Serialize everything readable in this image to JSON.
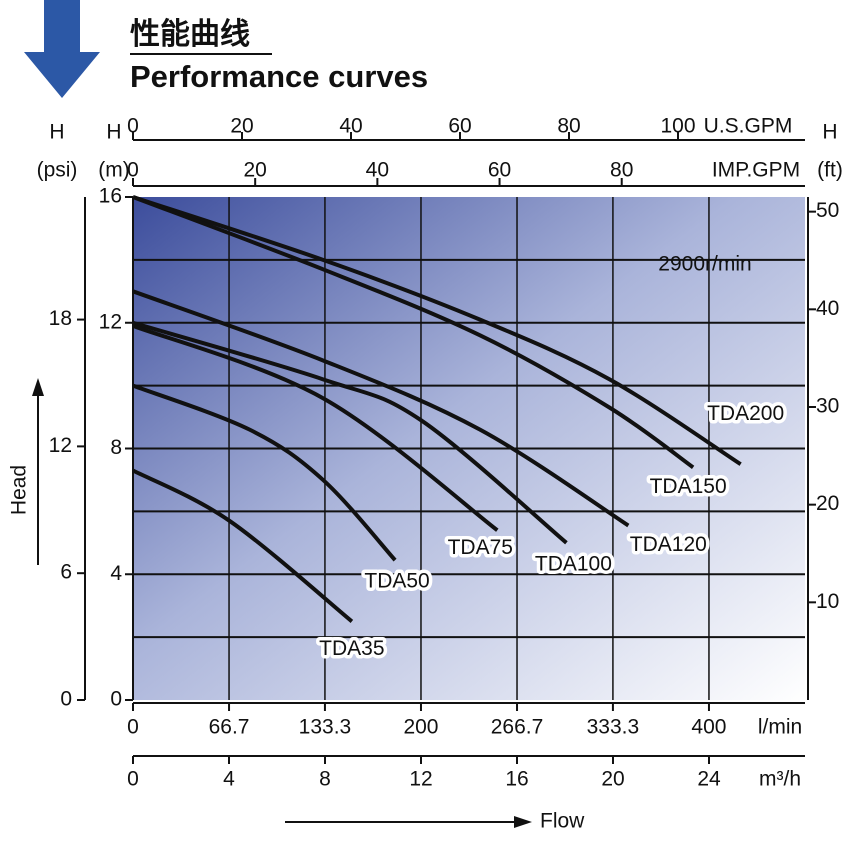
{
  "chart_data": {
    "type": "line",
    "title": "性能曲线",
    "subtitle": "Performance curves",
    "annotation": "2900r/min",
    "xlabel": "Flow",
    "ylabel": "Head",
    "grid": true,
    "ygrid": [
      2,
      4,
      6,
      8,
      10,
      12,
      14
    ],
    "x_axes": [
      {
        "unit": "l/min",
        "lim": [
          0,
          466.7
        ],
        "ticks": [
          0,
          66.7,
          133.3,
          200,
          266.7,
          333.3,
          400
        ]
      },
      {
        "unit": "m³/h",
        "lim": [
          0,
          28
        ],
        "ticks": [
          0,
          4,
          8,
          12,
          16,
          20,
          24
        ]
      },
      {
        "unit": "U.S.GPM",
        "lim": [
          0,
          123.3
        ],
        "ticks": [
          0,
          20,
          40,
          60,
          80,
          100
        ]
      },
      {
        "unit": "IMP.GPM",
        "lim": [
          0,
          110
        ],
        "ticks": [
          0,
          20,
          40,
          60,
          80
        ]
      }
    ],
    "y_axes": [
      {
        "symbol": "H",
        "unit": "(psi)",
        "lim": [
          0,
          23.8
        ],
        "ticks": [
          0,
          6,
          12,
          18
        ]
      },
      {
        "symbol": "H",
        "unit": "(m)",
        "lim": [
          0,
          16
        ],
        "ticks": [
          0,
          4,
          8,
          12,
          16
        ]
      },
      {
        "symbol": "H",
        "unit": "(ft)",
        "lim": [
          0,
          51.5
        ],
        "ticks": [
          10,
          20,
          30,
          40,
          50
        ]
      }
    ],
    "series": [
      {
        "name": "TDA200",
        "color": "#111111",
        "x": [
          0,
          132,
          241,
          331,
          422
        ],
        "values": [
          16,
          14.0,
          12.1,
          10.2,
          7.5
        ]
      },
      {
        "name": "TDA150",
        "color": "#111111",
        "x": [
          0,
          132,
          241,
          331,
          389
        ],
        "values": [
          16,
          13.7,
          11.6,
          9.3,
          7.4
        ]
      },
      {
        "name": "TDA120",
        "color": "#111111",
        "x": [
          0,
          132,
          241,
          344
        ],
        "values": [
          13.0,
          10.8,
          8.6,
          5.55
        ]
      },
      {
        "name": "TDA100",
        "color": "#111111",
        "x": [
          0,
          132,
          200,
          301
        ],
        "values": [
          12.0,
          10.2,
          8.9,
          5.0
        ]
      },
      {
        "name": "TDA75",
        "color": "#111111",
        "x": [
          0,
          132,
          253
        ],
        "values": [
          11.9,
          9.6,
          5.4
        ]
      },
      {
        "name": "TDA50",
        "color": "#111111",
        "x": [
          0,
          81,
          132,
          182
        ],
        "values": [
          10.0,
          8.6,
          7.0,
          4.45
        ]
      },
      {
        "name": "TDA35",
        "color": "#111111",
        "x": [
          0,
          67,
          152
        ],
        "values": [
          7.3,
          5.7,
          2.5
        ]
      }
    ]
  }
}
